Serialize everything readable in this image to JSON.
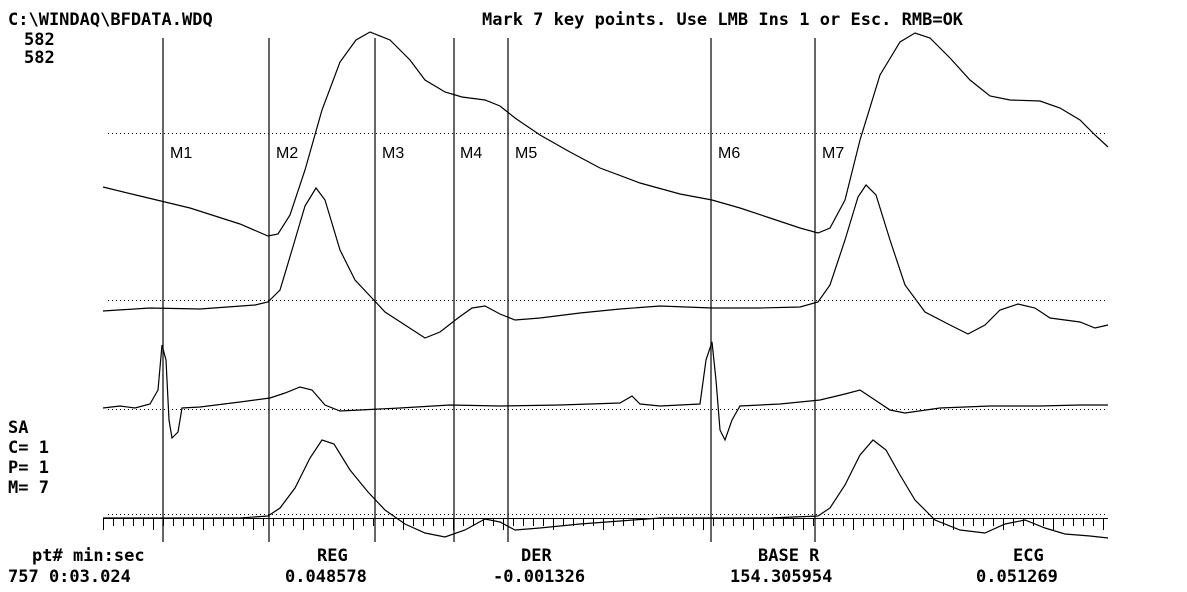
{
  "header": {
    "file_path": "C:\\WINDAQ\\BFDATA.WDQ",
    "instruction": "Mark 7 key points. Use LMB Ins 1 or Esc. RMB=OK",
    "scale_values": [
      "582",
      "582"
    ]
  },
  "side_panel": {
    "mode": "SA",
    "c_value": "C= 1",
    "p_value": "P= 1",
    "m_value": "M= 7"
  },
  "markers": [
    "M1",
    "M2",
    "M3",
    "M4",
    "M5",
    "M6",
    "M7"
  ],
  "readout": {
    "labels": {
      "pt": "pt# min:sec",
      "reg": "REG",
      "der": "DER",
      "base": "BASE R",
      "ecg": "ECG"
    },
    "values": {
      "pt": "757 0:03.024",
      "reg": "0.048578",
      "der": "-0.001326",
      "base": "154.305954",
      "ecg": "0.051269"
    }
  }
}
